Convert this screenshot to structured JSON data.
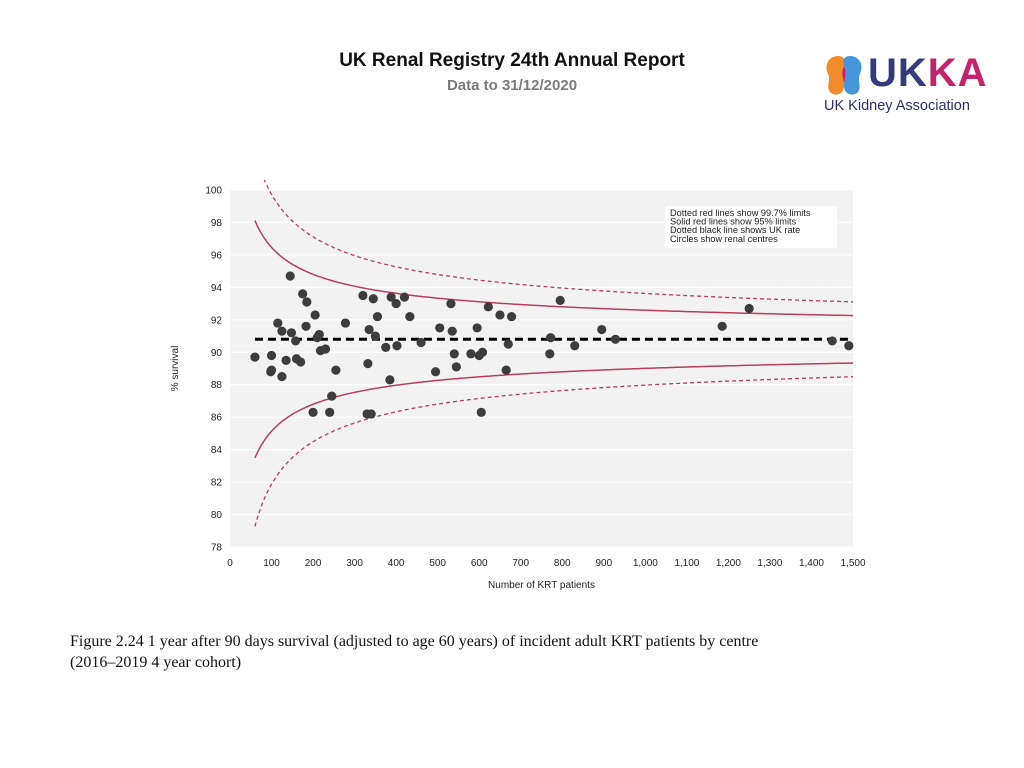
{
  "header": {
    "title": "UK Renal Registry 24th Annual Report",
    "subtitle": "Data to 31/12/2020"
  },
  "logo": {
    "wordmark_left": "UK",
    "wordmark_right": "KA",
    "org_name": "UK Kidney Association",
    "colors": {
      "navy": "#343a7c",
      "magenta": "#c4226b",
      "orange": "#f28c28",
      "blue": "#3a8fd8"
    }
  },
  "caption": "Figure 2.24 1 year after 90 days survival (adjusted to age 60 years) of incident adult KRT patients by centre (2016–2019 4 year cohort)",
  "chart_data": {
    "type": "scatter",
    "xlabel": "Number of KRT patients",
    "ylabel": "% survival",
    "xlim": [
      0,
      1500
    ],
    "ylim": [
      78,
      100
    ],
    "x_ticks": [
      0,
      100,
      200,
      300,
      400,
      500,
      600,
      700,
      800,
      900,
      1000,
      1100,
      1200,
      1300,
      1400,
      1500
    ],
    "x_tick_labels": [
      "0",
      "100",
      "200",
      "300",
      "400",
      "500",
      "600",
      "700",
      "800",
      "900",
      "1,000",
      "1,100",
      "1,200",
      "1,300",
      "1,400",
      "1,500"
    ],
    "y_ticks": [
      78,
      80,
      82,
      84,
      86,
      88,
      90,
      92,
      94,
      96,
      98,
      100
    ],
    "grid": "horizontal",
    "legend_lines": [
      "Dotted red lines show 99.7% limits",
      "Solid red lines show 95% limits",
      "Dotted black line shows UK rate",
      "Circles show renal centres"
    ],
    "legend_position": "top-right",
    "uk_rate": 90.8,
    "funnel_range": [
      60,
      1500
    ],
    "colors": {
      "points": "#3d3d3d",
      "limits": "#b53f5c",
      "uk_rate": "#000000",
      "plot_bg": "#f2f2f2",
      "grid": "#ffffff"
    },
    "points": [
      {
        "x": 60,
        "y": 89.7
      },
      {
        "x": 98,
        "y": 88.8
      },
      {
        "x": 100,
        "y": 88.9
      },
      {
        "x": 100,
        "y": 89.8
      },
      {
        "x": 115,
        "y": 91.8
      },
      {
        "x": 125,
        "y": 91.3
      },
      {
        "x": 125,
        "y": 88.5
      },
      {
        "x": 135,
        "y": 89.5
      },
      {
        "x": 145,
        "y": 94.7
      },
      {
        "x": 148,
        "y": 91.2
      },
      {
        "x": 158,
        "y": 90.7
      },
      {
        "x": 160,
        "y": 89.6
      },
      {
        "x": 170,
        "y": 89.4
      },
      {
        "x": 175,
        "y": 93.6
      },
      {
        "x": 183,
        "y": 91.6
      },
      {
        "x": 185,
        "y": 93.1
      },
      {
        "x": 200,
        "y": 86.3
      },
      {
        "x": 205,
        "y": 92.3
      },
      {
        "x": 210,
        "y": 90.9
      },
      {
        "x": 215,
        "y": 91.1
      },
      {
        "x": 218,
        "y": 90.1
      },
      {
        "x": 230,
        "y": 90.2
      },
      {
        "x": 240,
        "y": 86.3
      },
      {
        "x": 245,
        "y": 87.3
      },
      {
        "x": 255,
        "y": 88.9
      },
      {
        "x": 278,
        "y": 91.8
      },
      {
        "x": 320,
        "y": 93.5
      },
      {
        "x": 330,
        "y": 86.2
      },
      {
        "x": 332,
        "y": 89.3
      },
      {
        "x": 335,
        "y": 91.4
      },
      {
        "x": 340,
        "y": 86.2
      },
      {
        "x": 345,
        "y": 93.3
      },
      {
        "x": 350,
        "y": 91.0
      },
      {
        "x": 355,
        "y": 92.2
      },
      {
        "x": 375,
        "y": 90.3
      },
      {
        "x": 385,
        "y": 88.3
      },
      {
        "x": 388,
        "y": 93.4
      },
      {
        "x": 400,
        "y": 93.0
      },
      {
        "x": 402,
        "y": 90.4
      },
      {
        "x": 420,
        "y": 93.4
      },
      {
        "x": 433,
        "y": 92.2
      },
      {
        "x": 460,
        "y": 90.6
      },
      {
        "x": 495,
        "y": 88.8
      },
      {
        "x": 505,
        "y": 91.5
      },
      {
        "x": 532,
        "y": 93.0
      },
      {
        "x": 535,
        "y": 91.3
      },
      {
        "x": 540,
        "y": 89.9
      },
      {
        "x": 545,
        "y": 89.1
      },
      {
        "x": 580,
        "y": 89.9
      },
      {
        "x": 595,
        "y": 91.5
      },
      {
        "x": 600,
        "y": 89.8
      },
      {
        "x": 605,
        "y": 86.3
      },
      {
        "x": 608,
        "y": 90.0
      },
      {
        "x": 622,
        "y": 92.8
      },
      {
        "x": 650,
        "y": 92.3
      },
      {
        "x": 665,
        "y": 88.9
      },
      {
        "x": 670,
        "y": 90.5
      },
      {
        "x": 678,
        "y": 92.2
      },
      {
        "x": 770,
        "y": 89.9
      },
      {
        "x": 772,
        "y": 90.9
      },
      {
        "x": 795,
        "y": 93.2
      },
      {
        "x": 830,
        "y": 90.4
      },
      {
        "x": 895,
        "y": 91.4
      },
      {
        "x": 928,
        "y": 90.8
      },
      {
        "x": 1185,
        "y": 91.6
      },
      {
        "x": 1250,
        "y": 92.7
      },
      {
        "x": 1450,
        "y": 90.7
      },
      {
        "x": 1490,
        "y": 90.4
      }
    ]
  }
}
